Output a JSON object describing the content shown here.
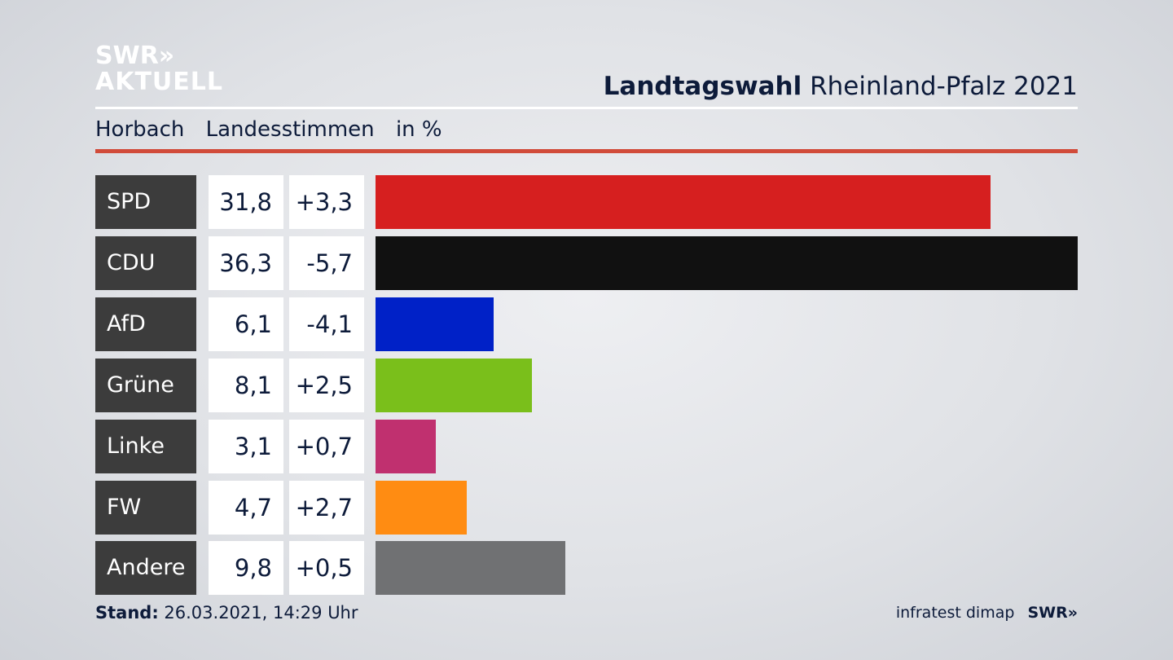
{
  "logo": {
    "line1": "SWR»",
    "line2": "AKTUELL"
  },
  "header": {
    "title_bold": "Landtagswahl",
    "title_rest": "Rheinland-Pfalz 2021"
  },
  "subheader": {
    "place": "Horbach",
    "measure": "Landesstimmen",
    "unit": "in %"
  },
  "footer": {
    "stand_label": "Stand:",
    "stand_value": "26.03.2021, 14:29 Uhr",
    "source": "infratest dimap",
    "brand": "SWR»"
  },
  "colors": {
    "SPD": "#d61f1f",
    "CDU": "#111111",
    "AfD": "#0021c7",
    "Grüne": "#7abf1b",
    "Linke": "#c0306f",
    "FW": "#ff8c12",
    "Andere": "#707173"
  },
  "chart_data": {
    "type": "bar",
    "orientation": "horizontal",
    "categories": [
      "SPD",
      "CDU",
      "AfD",
      "Grüne",
      "Linke",
      "FW",
      "Andere"
    ],
    "values": [
      31.8,
      36.3,
      6.1,
      8.1,
      3.1,
      4.7,
      9.8
    ],
    "values_label": [
      "31,8",
      "36,3",
      "6,1",
      "8,1",
      "3,1",
      "4,7",
      "9,8"
    ],
    "diff": [
      3.3,
      -5.7,
      -4.1,
      2.5,
      0.7,
      2.7,
      0.5
    ],
    "diff_label": [
      "+3,3",
      "-5,7",
      "-4,1",
      "+2,5",
      "+0,7",
      "+2,7",
      "+0,5"
    ],
    "xlim": [
      0,
      36.3
    ],
    "grid": false,
    "legend": "none"
  }
}
